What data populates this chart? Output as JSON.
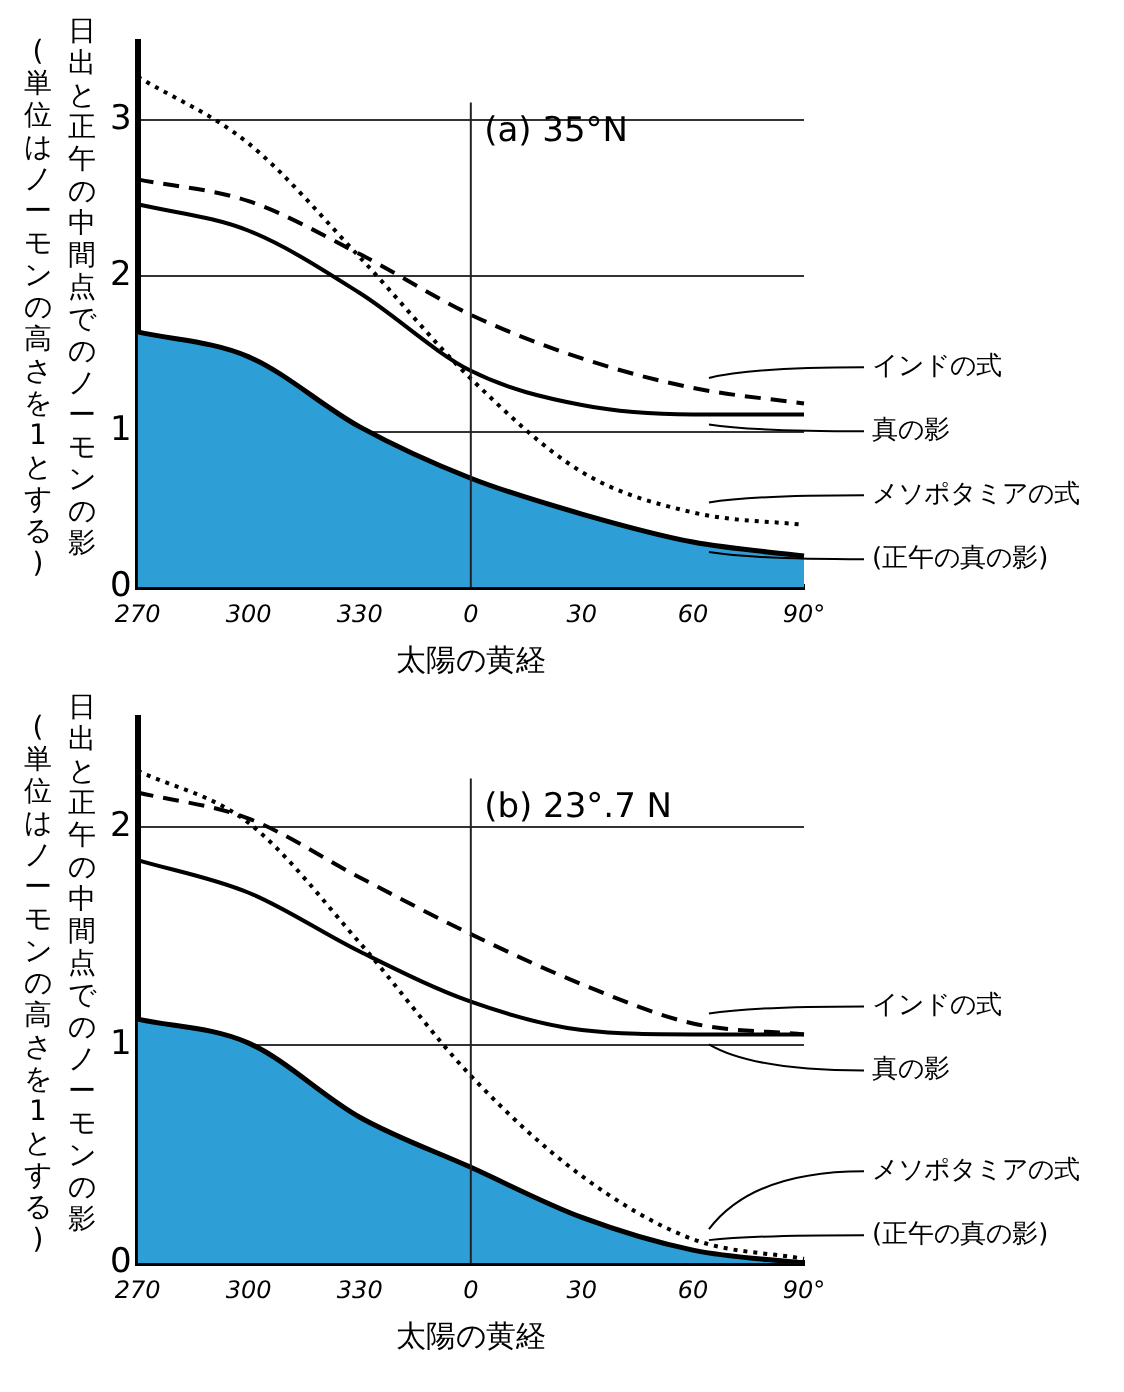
{
  "chart_data": [
    {
      "type": "line",
      "title": "(a) 35°N",
      "xlabel": "太陽の黄経",
      "ylabel": "日出と正午の中間点でのノーモンの影",
      "annotations": [
        "(単位はノーモンの高さを1とする)"
      ],
      "categories": [
        "270",
        "300",
        "330",
        "0",
        "30",
        "60",
        "90°"
      ],
      "series": [
        {
          "name": "インドの式",
          "color": "#000000",
          "line_style": "dashed",
          "values": [
            2.62,
            2.48,
            2.14,
            1.75,
            1.47,
            1.28,
            1.18
          ]
        },
        {
          "name": "真の影",
          "color": "#000000",
          "line_style": "solid",
          "values": [
            2.46,
            2.29,
            1.89,
            1.39,
            1.17,
            1.11,
            1.11
          ]
        },
        {
          "name": "メソポタミアの式",
          "color": "#000000",
          "line_style": "dotted",
          "values": [
            3.28,
            2.85,
            2.12,
            1.34,
            0.74,
            0.48,
            0.4
          ]
        },
        {
          "name": "(正午の真の影)",
          "type": "area",
          "color": "#2e9fd6",
          "values": [
            1.64,
            1.48,
            1.03,
            0.7,
            0.47,
            0.29,
            0.2
          ]
        }
      ],
      "ylim": [
        0,
        3.5
      ],
      "yticks": [
        0,
        1,
        2,
        3
      ],
      "grid": "y",
      "legend": false,
      "marker": "none",
      "ref_lines": [
        {
          "axis": "x",
          "value": "0"
        }
      ]
    },
    {
      "type": "line",
      "title": "(b) 23°.7 N",
      "xlabel": "太陽の黄経",
      "ylabel": "日出と正午の中間点でのノーモンの影",
      "annotations": [
        "(単位はノーモンの高さを1とする)"
      ],
      "categories": [
        "270",
        "300",
        "330",
        "0",
        "30",
        "60",
        "90°"
      ],
      "series": [
        {
          "name": "インドの式",
          "color": "#000000",
          "line_style": "dashed",
          "values": [
            2.16,
            2.04,
            1.77,
            1.51,
            1.28,
            1.1,
            1.05
          ]
        },
        {
          "name": "真の影",
          "color": "#000000",
          "line_style": "solid",
          "values": [
            1.85,
            1.7,
            1.43,
            1.2,
            1.07,
            1.05,
            1.05
          ]
        },
        {
          "name": "メソポタミアの式",
          "color": "#000000",
          "line_style": "dotted",
          "values": [
            2.26,
            2.02,
            1.47,
            0.86,
            0.4,
            0.11,
            0.02
          ]
        },
        {
          "name": "(正午の真の影)",
          "type": "area",
          "color": "#2e9fd6",
          "values": [
            1.12,
            1.01,
            0.67,
            0.44,
            0.21,
            0.06,
            0
          ]
        }
      ],
      "ylim": [
        0,
        2.5
      ],
      "yticks": [
        0,
        1,
        2
      ],
      "grid": "y",
      "legend": false,
      "marker": "none",
      "ref_lines": [
        {
          "axis": "x",
          "value": "0"
        }
      ]
    }
  ]
}
